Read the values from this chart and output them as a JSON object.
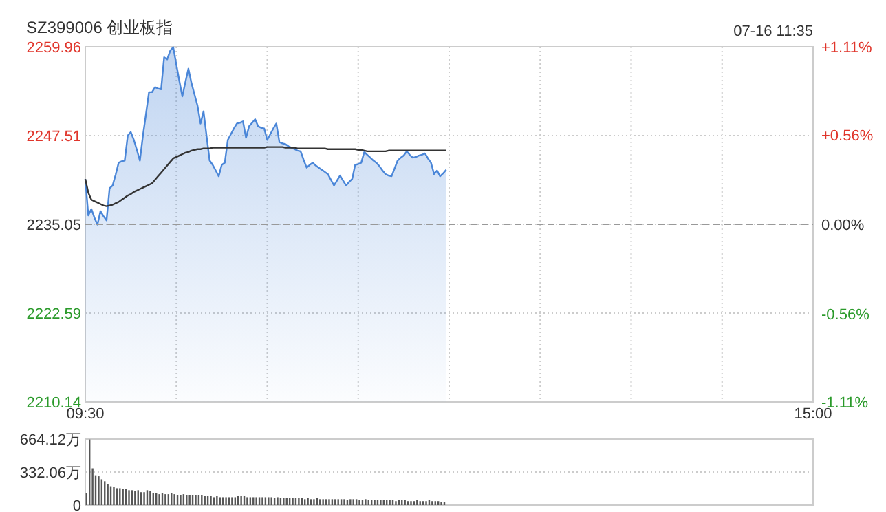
{
  "chart_data": [
    {
      "type": "area",
      "title": "SZ399006 创业板指",
      "annotations": [
        "07-16 11:35"
      ],
      "categories": [
        "09:30",
        null,
        null,
        null,
        null,
        null,
        null,
        null,
        null,
        null,
        null,
        null,
        null,
        null,
        null,
        null,
        null,
        null,
        null,
        null,
        null,
        null,
        null,
        null,
        null,
        null,
        null,
        null,
        null,
        null,
        null,
        null,
        null,
        null,
        null,
        null,
        null,
        null,
        null,
        null,
        null,
        null,
        null,
        null,
        null,
        null,
        null,
        null,
        null,
        null,
        null,
        null,
        null,
        null,
        null,
        null,
        null,
        null,
        null,
        null,
        null,
        null,
        null,
        null,
        null,
        null,
        null,
        null,
        null,
        null,
        null,
        null,
        null,
        null,
        null,
        null,
        null,
        null,
        null,
        null,
        null,
        null,
        null,
        null,
        null,
        null,
        null,
        null,
        null,
        null,
        null,
        null,
        null,
        null,
        null,
        null,
        null,
        null,
        null,
        null,
        null,
        null,
        null,
        null,
        null,
        null,
        null,
        null,
        null,
        null,
        null,
        null,
        null,
        null,
        null,
        null,
        null,
        null,
        null,
        null,
        null,
        null,
        null,
        null,
        null,
        null,
        null,
        null,
        null,
        null,
        null,
        null,
        null,
        null,
        null,
        null,
        null,
        null,
        null,
        null,
        null,
        null,
        null,
        null,
        null,
        null,
        null,
        null,
        null,
        null,
        null,
        null,
        null,
        null,
        null,
        null,
        null,
        null,
        null,
        null,
        null,
        null,
        null,
        null,
        null,
        null,
        null,
        null,
        null,
        null,
        null,
        null,
        null,
        null,
        null,
        null,
        null,
        null,
        null,
        null,
        null,
        null,
        null,
        null,
        null,
        null,
        null,
        null,
        null,
        null,
        null,
        null,
        null,
        null,
        null,
        null,
        null,
        null,
        null,
        null,
        null,
        null,
        null,
        null,
        null,
        null,
        null,
        null,
        null,
        null,
        null,
        null,
        null,
        null,
        null,
        null,
        null,
        null,
        null,
        null,
        null,
        null,
        null,
        null,
        null,
        null,
        null,
        null,
        null,
        null,
        null,
        null,
        null,
        null,
        null,
        null,
        null,
        null,
        null,
        null,
        "15:00"
      ],
      "ylim": [
        2210.14,
        2259.96
      ],
      "yticks": [
        2210.14,
        2222.59,
        2235.05,
        2247.51,
        2259.96
      ],
      "y2lim": [
        -1.11,
        1.11
      ],
      "y2ticks": [
        {
          "value": -1.11,
          "label": "-1.11%"
        },
        {
          "value": -0.56,
          "label": "-0.56%"
        },
        {
          "value": 0,
          "label": "0.00%"
        },
        {
          "value": 0.56,
          "label": "+0.56%"
        },
        {
          "value": 1.11,
          "label": "+1.11%"
        }
      ],
      "grid": true,
      "ref_lines": [
        {
          "axis": "y",
          "value": 2235.05,
          "color": "#999999",
          "line_style": "dashed"
        }
      ],
      "series": [
        {
          "color": "#4a86d8",
          "values": [
            2241.4,
            2236.3,
            2237.2,
            2236.0,
            2235.0,
            2236.9,
            2236.2,
            2235.6,
            2240.1,
            2240.5,
            2242.0,
            2243.7,
            2243.9,
            2244.0,
            2247.5,
            2248.0,
            2246.9,
            2245.5,
            2244.0,
            2247.5,
            2250.5,
            2253.6,
            2253.6,
            2254.3,
            2254.1,
            2254.0,
            2258.5,
            2258.2,
            2259.4,
            2259.9,
            2257.5,
            2255.2,
            2253.0,
            2255.0,
            2256.9,
            2254.9,
            2253.3,
            2251.7,
            2249.2,
            2250.9,
            2247.4,
            2244.0,
            2243.4,
            2242.6,
            2241.8,
            2243.4,
            2243.7,
            2246.9,
            2247.7,
            2248.5,
            2249.2,
            2249.3,
            2249.5,
            2247.2,
            2248.8,
            2249.3,
            2249.8,
            2248.8,
            2248.6,
            2248.5,
            2246.9,
            2247.7,
            2248.5,
            2249.2,
            2246.6,
            2246.4,
            2246.3,
            2246.0,
            2245.8,
            2245.6,
            2245.4,
            2245.3,
            2244.1,
            2243.0,
            2243.4,
            2243.7,
            2243.3,
            2243.0,
            2242.7,
            2242.4,
            2242.1,
            2241.3,
            2240.5,
            2241.2,
            2241.9,
            2241.2,
            2240.5,
            2241.0,
            2241.4,
            2243.4,
            2243.5,
            2243.7,
            2245.2,
            2244.8,
            2244.4,
            2244.0,
            2243.7,
            2243.2,
            2242.6,
            2242.1,
            2241.9,
            2241.8,
            2242.9,
            2244.0,
            2244.4,
            2244.7,
            2245.3,
            2244.8,
            2244.4,
            2244.5,
            2244.7,
            2244.8,
            2245.0,
            2244.3,
            2243.7,
            2242.1,
            2242.6,
            2241.8,
            2242.2,
            2242.7,
            null,
            null,
            null,
            null,
            null,
            null,
            null,
            null,
            null,
            null,
            null,
            null,
            null,
            null,
            null,
            null,
            null,
            null,
            null,
            null,
            null,
            null,
            null,
            null,
            null,
            null,
            null,
            null,
            null,
            null,
            null,
            null,
            null,
            null,
            null,
            null,
            null,
            null,
            null,
            null,
            null,
            null,
            null,
            null,
            null,
            null,
            null,
            null,
            null,
            null,
            null,
            null,
            null,
            null,
            null,
            null,
            null,
            null,
            null,
            null,
            null,
            null,
            null,
            null,
            null,
            null,
            null,
            null,
            null,
            null,
            null,
            null,
            null,
            null,
            null,
            null,
            null,
            null,
            null,
            null,
            null,
            null,
            null,
            null,
            null,
            null,
            null,
            null,
            null,
            null,
            null,
            null,
            null,
            null,
            null,
            null,
            null,
            null,
            null,
            null,
            null,
            null,
            null,
            null,
            null,
            null,
            null,
            null,
            null,
            null,
            null,
            null,
            null,
            null,
            null,
            null,
            null,
            null,
            null,
            null,
            null
          ]
        },
        {
          "type": "line",
          "color": "#333333",
          "values": [
            2241.4,
            2239.5,
            2238.5,
            2238.3,
            2238.1,
            2237.9,
            2237.7,
            2237.6,
            2237.7,
            2237.8,
            2238.0,
            2238.2,
            2238.5,
            2238.8,
            2239.1,
            2239.3,
            2239.6,
            2239.8,
            2240.0,
            2240.2,
            2240.4,
            2240.6,
            2240.8,
            2241.3,
            2241.8,
            2242.3,
            2242.8,
            2243.3,
            2243.8,
            2244.3,
            2244.5,
            2244.7,
            2244.9,
            2245.1,
            2245.2,
            2245.4,
            2245.5,
            2245.6,
            2245.6,
            2245.7,
            2245.7,
            2245.7,
            2245.8,
            2245.8,
            2245.8,
            2245.8,
            2245.8,
            2245.8,
            2245.8,
            2245.8,
            2245.8,
            2245.8,
            2245.8,
            2245.8,
            2245.8,
            2245.8,
            2245.8,
            2245.8,
            2245.8,
            2245.8,
            2245.9,
            2245.9,
            2245.9,
            2245.9,
            2245.9,
            2245.9,
            2245.8,
            2245.8,
            2245.8,
            2245.8,
            2245.7,
            2245.7,
            2245.7,
            2245.7,
            2245.7,
            2245.7,
            2245.7,
            2245.7,
            2245.7,
            2245.7,
            2245.6,
            2245.6,
            2245.6,
            2245.6,
            2245.6,
            2245.6,
            2245.6,
            2245.6,
            2245.6,
            2245.6,
            2245.5,
            2245.5,
            2245.4,
            2245.3,
            2245.3,
            2245.3,
            2245.3,
            2245.3,
            2245.3,
            2245.3,
            2245.4,
            2245.4,
            2245.4,
            2245.4,
            2245.4,
            2245.4,
            2245.4,
            2245.4,
            2245.4,
            2245.4,
            2245.4,
            2245.4,
            2245.4,
            2245.4,
            2245.4,
            2245.4,
            2245.4,
            2245.4,
            2245.4,
            2245.4,
            null,
            null,
            null,
            null,
            null,
            null,
            null,
            null,
            null,
            null,
            null,
            null,
            null,
            null,
            null,
            null,
            null,
            null,
            null,
            null,
            null,
            null,
            null,
            null,
            null,
            null,
            null,
            null,
            null,
            null,
            null,
            null,
            null,
            null,
            null,
            null,
            null,
            null,
            null,
            null,
            null,
            null,
            null,
            null,
            null,
            null,
            null,
            null,
            null,
            null,
            null,
            null,
            null,
            null,
            null,
            null,
            null,
            null,
            null,
            null,
            null,
            null,
            null,
            null,
            null,
            null,
            null,
            null,
            null,
            null,
            null,
            null,
            null,
            null,
            null,
            null,
            null,
            null,
            null,
            null,
            null,
            null,
            null,
            null,
            null,
            null,
            null,
            null,
            null,
            null,
            null,
            null,
            null,
            null,
            null,
            null,
            null,
            null,
            null,
            null,
            null,
            null,
            null,
            null,
            null,
            null,
            null,
            null,
            null,
            null,
            null,
            null,
            null,
            null,
            null,
            null,
            null,
            null,
            null,
            null,
            null
          ]
        }
      ]
    },
    {
      "type": "bar",
      "color": "#555555",
      "grid": "y",
      "categories": [
        null,
        null,
        null,
        null,
        null,
        null,
        null,
        null,
        null,
        null,
        null,
        null,
        null,
        null,
        null,
        null,
        null,
        null,
        null,
        null,
        null,
        null,
        null,
        null,
        null,
        null,
        null,
        null,
        null,
        null,
        null,
        null,
        null,
        null,
        null,
        null,
        null,
        null,
        null,
        null,
        null,
        null,
        null,
        null,
        null,
        null,
        null,
        null,
        null,
        null,
        null,
        null,
        null,
        null,
        null,
        null,
        null,
        null,
        null,
        null,
        null,
        null,
        null,
        null,
        null,
        null,
        null,
        null,
        null,
        null,
        null,
        null,
        null,
        null,
        null,
        null,
        null,
        null,
        null,
        null,
        null,
        null,
        null,
        null,
        null,
        null,
        null,
        null,
        null,
        null,
        null,
        null,
        null,
        null,
        null,
        null,
        null,
        null,
        null,
        null,
        null,
        null,
        null,
        null,
        null,
        null,
        null,
        null,
        null,
        null,
        null,
        null,
        null,
        null,
        null,
        null,
        null,
        null,
        null,
        null,
        null,
        null,
        null,
        null,
        null,
        null,
        null,
        null,
        null,
        null,
        null,
        null,
        null,
        null,
        null,
        null,
        null,
        null,
        null,
        null,
        null,
        null,
        null,
        null,
        null,
        null,
        null,
        null,
        null,
        null,
        null,
        null,
        null,
        null,
        null,
        null,
        null,
        null,
        null,
        null,
        null,
        null,
        null,
        null,
        null,
        null,
        null,
        null,
        null,
        null,
        null,
        null,
        null,
        null,
        null,
        null,
        null,
        null,
        null,
        null,
        null,
        null,
        null,
        null,
        null,
        null,
        null,
        null,
        null,
        null,
        null,
        null,
        null,
        null,
        null,
        null,
        null,
        null,
        null,
        null,
        null,
        null,
        null,
        null,
        null,
        null,
        null,
        null,
        null,
        null,
        null,
        null,
        null,
        null,
        null,
        null,
        null,
        null,
        null,
        null,
        null,
        null,
        null,
        null,
        null,
        null,
        null,
        null,
        null,
        null,
        null,
        null,
        null,
        null,
        null,
        null,
        null,
        null,
        null,
        null,
        null
      ],
      "ylim": [
        0,
        664.12
      ],
      "yticks": [
        0,
        {
          "value": 332.06,
          "label": "332.06万"
        },
        {
          "value": 664.12,
          "label": "664.12万"
        }
      ],
      "values": [
        120,
        660,
        370,
        300,
        290,
        260,
        240,
        210,
        190,
        180,
        170,
        170,
        160,
        160,
        150,
        150,
        140,
        150,
        130,
        130,
        150,
        140,
        120,
        120,
        110,
        120,
        110,
        110,
        120,
        110,
        100,
        100,
        110,
        100,
        100,
        100,
        100,
        100,
        100,
        90,
        90,
        90,
        80,
        90,
        80,
        80,
        80,
        80,
        80,
        80,
        90,
        90,
        90,
        80,
        80,
        80,
        80,
        80,
        80,
        80,
        80,
        80,
        70,
        80,
        70,
        70,
        70,
        70,
        70,
        70,
        70,
        70,
        60,
        70,
        60,
        60,
        70,
        60,
        60,
        60,
        60,
        60,
        60,
        60,
        60,
        60,
        50,
        60,
        60,
        60,
        50,
        50,
        60,
        50,
        50,
        50,
        50,
        50,
        50,
        50,
        50,
        50,
        40,
        50,
        50,
        50,
        40,
        40,
        40,
        50,
        40,
        40,
        40,
        50,
        40,
        40,
        40,
        30,
        30,
        null,
        null,
        null,
        null,
        null,
        null,
        null,
        null,
        null,
        null,
        null,
        null,
        null,
        null,
        null,
        null,
        null,
        null,
        null,
        null,
        null,
        null,
        null,
        null,
        null,
        null,
        null,
        null,
        null,
        null,
        null,
        null,
        null,
        null,
        null,
        null,
        null,
        null,
        null,
        null,
        null,
        null,
        null,
        null,
        null,
        null,
        null,
        null,
        null,
        null,
        null,
        null,
        null,
        null,
        null,
        null,
        null,
        null,
        null,
        null,
        null,
        null,
        null,
        null,
        null,
        null,
        null,
        null,
        null,
        null,
        null,
        null,
        null,
        null,
        null,
        null,
        null,
        null,
        null,
        null,
        null,
        null,
        null,
        null,
        null,
        null,
        null,
        null,
        null,
        null,
        null,
        null,
        null,
        null,
        null,
        null,
        null,
        null,
        null,
        null,
        null,
        null,
        null,
        null,
        null,
        null,
        null,
        null,
        null,
        null,
        null,
        null,
        null,
        null,
        null,
        null,
        null,
        null,
        null,
        null,
        null,
        null
      ]
    }
  ]
}
